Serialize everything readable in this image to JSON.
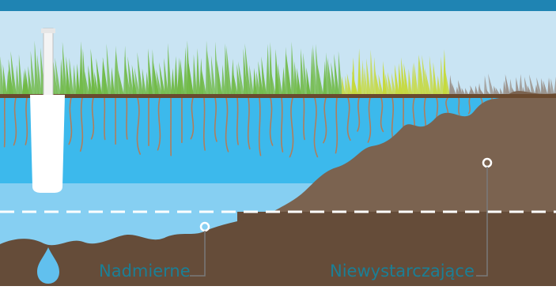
{
  "labels": {
    "excess": "Nadmierne",
    "insufficient": "Niewystarczające"
  },
  "colors": {
    "banner": "#1f84b3",
    "sky": "#c9e4f3",
    "water_dark": "#3cb9ec",
    "water_light": "#86cff2",
    "soil_dry": "#7b6350",
    "soil_deep": "#654c39",
    "root": "#b07e5c",
    "grass_green": "#6fb944",
    "grass_yellow": "#c6d93a",
    "grass_gray": "#9a918a",
    "label_text": "#1b7f96",
    "droplet": "#61c0ee"
  },
  "icons": [
    "sprinkler-head-icon",
    "water-droplet-icon"
  ]
}
